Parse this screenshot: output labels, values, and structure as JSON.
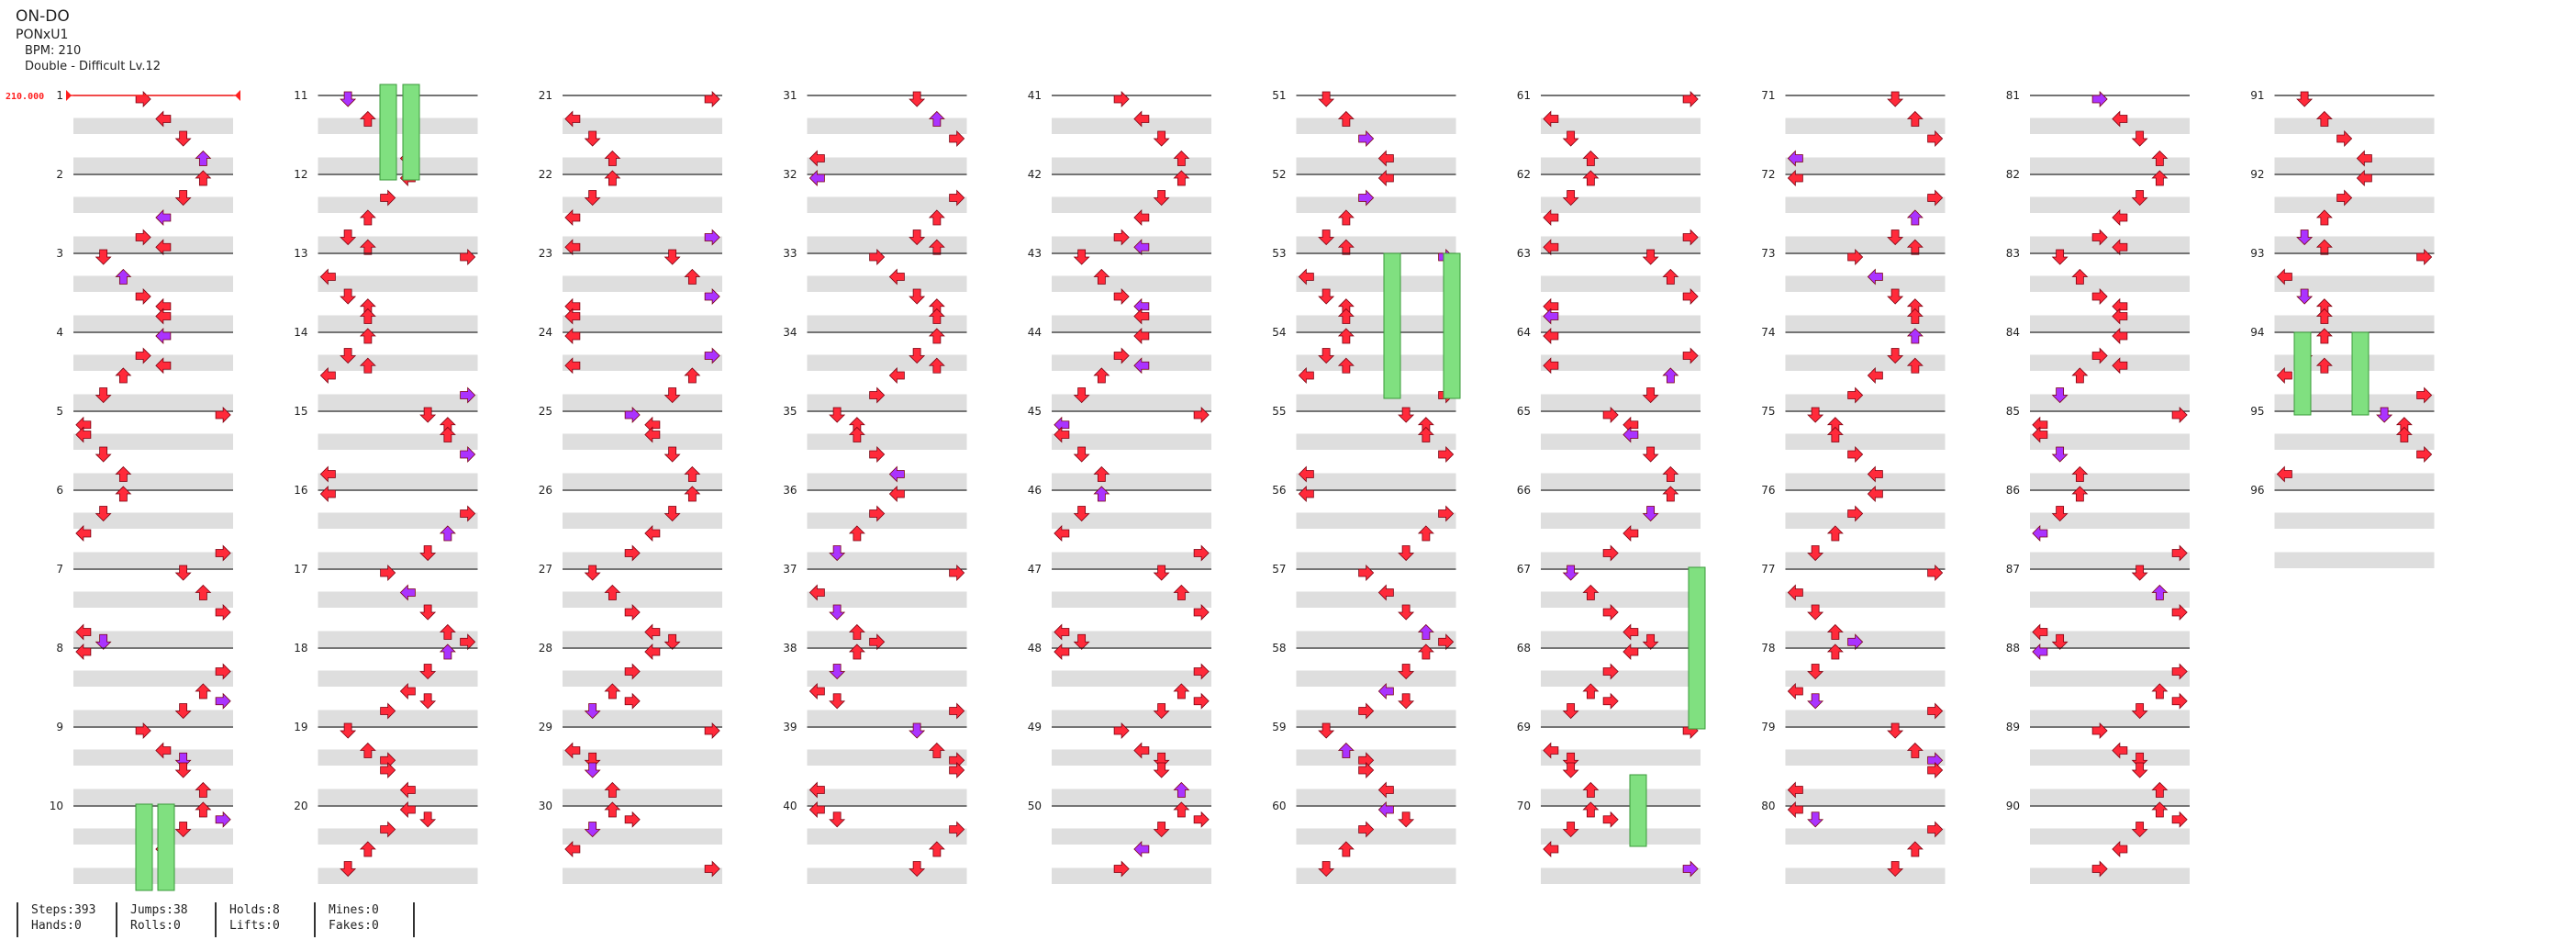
{
  "song": {
    "title": "ON-DO",
    "artist": "PONxU1",
    "bpm_text": "BPM: 210",
    "difficulty_text": "Double - Difficult Lv.12"
  },
  "bpm_marker": {
    "label": "210.000",
    "color": "#ff2020"
  },
  "colors": {
    "tap": "#ff2a3a",
    "tap_alt": "#aa33ff",
    "hold": "#80e080",
    "row_shade": "#dedede",
    "beat_line": "#222222"
  },
  "measures": [
    "1",
    "2",
    "3",
    "4",
    "5",
    "6",
    "7",
    "8",
    "9",
    "10",
    "11",
    "12",
    "13",
    "14",
    "15",
    "16",
    "17",
    "18",
    "19",
    "20",
    "21",
    "22",
    "23",
    "24",
    "25",
    "26",
    "27",
    "28",
    "29",
    "30",
    "31",
    "32",
    "33",
    "34",
    "35",
    "36",
    "37",
    "38",
    "39",
    "40",
    "41",
    "42",
    "43",
    "44",
    "45",
    "46",
    "47",
    "48",
    "49",
    "50",
    "51",
    "52",
    "53",
    "54",
    "55",
    "56",
    "57",
    "58",
    "59",
    "60",
    "61",
    "62",
    "63",
    "64",
    "65",
    "66",
    "67",
    "68",
    "69",
    "70",
    "71",
    "72",
    "73",
    "74",
    "75",
    "76",
    "77",
    "78",
    "79",
    "80",
    "81",
    "82",
    "83",
    "84",
    "85",
    "86",
    "87",
    "88",
    "89",
    "90",
    "91",
    "92",
    "93",
    "94",
    "95",
    "96"
  ],
  "stats": {
    "steps": "Steps:393",
    "hands": "Hands:0",
    "jumps": "Jumps:38",
    "rolls": "Rolls:0",
    "holds": "Holds:8",
    "lifts": "Lifts:0",
    "mines": "Mines:0",
    "fakes": "Fakes:0"
  }
}
